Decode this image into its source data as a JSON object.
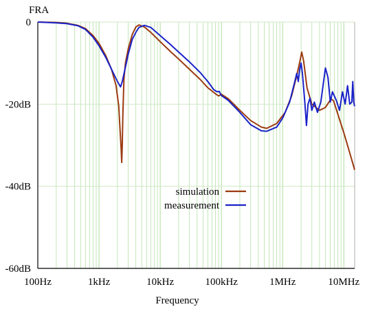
{
  "chart_data": {
    "type": "line",
    "title": "FRA",
    "xlabel": "Frequency",
    "ylabel": "",
    "x_scale": "log",
    "xlim": [
      100,
      15000000
    ],
    "ylim": [
      -60,
      0
    ],
    "x_ticks": [
      {
        "value": 100,
        "label": "100Hz"
      },
      {
        "value": 1000,
        "label": "1kHz"
      },
      {
        "value": 10000,
        "label": "10kHz"
      },
      {
        "value": 100000,
        "label": "100kHz"
      },
      {
        "value": 1000000,
        "label": "1MHz"
      },
      {
        "value": 10000000,
        "label": "10MHz"
      }
    ],
    "y_ticks": [
      {
        "value": 0,
        "label": "0"
      },
      {
        "value": -20,
        "label": "-20dB"
      },
      {
        "value": -40,
        "label": "-40dB"
      },
      {
        "value": -60,
        "label": "-60dB"
      }
    ],
    "grid": true,
    "grid_color_x": "#b5e0a8",
    "grid_color_y": "#cfe9c4",
    "legend_placement": "center",
    "series": [
      {
        "name": "simulation",
        "color": "#9b3a10",
        "points": [
          [
            100,
            0
          ],
          [
            200,
            -0.1
          ],
          [
            300,
            -0.3
          ],
          [
            450,
            -0.8
          ],
          [
            600,
            -1.6
          ],
          [
            800,
            -3.3
          ],
          [
            1000,
            -5.2
          ],
          [
            1300,
            -8.3
          ],
          [
            1600,
            -11.5
          ],
          [
            1900,
            -15.5
          ],
          [
            2100,
            -20.5
          ],
          [
            2200,
            -26
          ],
          [
            2300,
            -31
          ],
          [
            2350,
            -34.2
          ],
          [
            2400,
            -30
          ],
          [
            2450,
            -23
          ],
          [
            2550,
            -14
          ],
          [
            2700,
            -10
          ],
          [
            3000,
            -6.5
          ],
          [
            3500,
            -3
          ],
          [
            4000,
            -1.2
          ],
          [
            4500,
            -0.7
          ],
          [
            5500,
            -1.2
          ],
          [
            7000,
            -2.5
          ],
          [
            10000,
            -4.8
          ],
          [
            15000,
            -7.3
          ],
          [
            20000,
            -9.0
          ],
          [
            30000,
            -11.5
          ],
          [
            45000,
            -14
          ],
          [
            60000,
            -16
          ],
          [
            80000,
            -17.5
          ],
          [
            90000,
            -18
          ],
          [
            100000,
            -17.6
          ],
          [
            130000,
            -18.7
          ],
          [
            200000,
            -21.5
          ],
          [
            300000,
            -24
          ],
          [
            450000,
            -25.6
          ],
          [
            550000,
            -25.9
          ],
          [
            800000,
            -24.7
          ],
          [
            1100000,
            -22
          ],
          [
            1400000,
            -18
          ],
          [
            1700000,
            -13
          ],
          [
            1950000,
            -9
          ],
          [
            2050000,
            -7.3
          ],
          [
            2200000,
            -9.5
          ],
          [
            2500000,
            -16
          ],
          [
            3000000,
            -20
          ],
          [
            4000000,
            -21.5
          ],
          [
            5000000,
            -20.8
          ],
          [
            6200000,
            -18.7
          ],
          [
            6800000,
            -19.2
          ],
          [
            8000000,
            -22.5
          ],
          [
            10000000,
            -27
          ],
          [
            12000000,
            -31
          ],
          [
            15000000,
            -36
          ]
        ]
      },
      {
        "name": "measurement",
        "color": "#1a22c8",
        "points": [
          [
            100,
            0
          ],
          [
            200,
            -0.2
          ],
          [
            300,
            -0.4
          ],
          [
            450,
            -0.9
          ],
          [
            600,
            -1.8
          ],
          [
            800,
            -3.7
          ],
          [
            1000,
            -5.8
          ],
          [
            1300,
            -8.7
          ],
          [
            1600,
            -11.5
          ],
          [
            2000,
            -14.5
          ],
          [
            2250,
            -15.8
          ],
          [
            2400,
            -14.5
          ],
          [
            2700,
            -11
          ],
          [
            3000,
            -7.8
          ],
          [
            3500,
            -4.2
          ],
          [
            4000,
            -2.5
          ],
          [
            4500,
            -1.3
          ],
          [
            5500,
            -0.8
          ],
          [
            7000,
            -1.3
          ],
          [
            10000,
            -3.3
          ],
          [
            15000,
            -5.6
          ],
          [
            20000,
            -7.3
          ],
          [
            30000,
            -9.7
          ],
          [
            45000,
            -12.3
          ],
          [
            60000,
            -14.5
          ],
          [
            75000,
            -16.5
          ],
          [
            85000,
            -17
          ],
          [
            92000,
            -16.9
          ],
          [
            100000,
            -17.9
          ],
          [
            130000,
            -19.1
          ],
          [
            200000,
            -22
          ],
          [
            300000,
            -25
          ],
          [
            450000,
            -26.5
          ],
          [
            550000,
            -26.6
          ],
          [
            800000,
            -25.6
          ],
          [
            1000000,
            -23.4
          ],
          [
            1300000,
            -19.5
          ],
          [
            1550000,
            -15
          ],
          [
            1700000,
            -12.5
          ],
          [
            1800000,
            -14.5
          ],
          [
            1900000,
            -11.5
          ],
          [
            2000000,
            -10
          ],
          [
            2100000,
            -12.5
          ],
          [
            2300000,
            -19.5
          ],
          [
            2450000,
            -25.2
          ],
          [
            2600000,
            -20
          ],
          [
            2800000,
            -18.5
          ],
          [
            3000000,
            -21.5
          ],
          [
            3300000,
            -19.5
          ],
          [
            3700000,
            -22
          ],
          [
            4200000,
            -19.5
          ],
          [
            5000000,
            -11.2
          ],
          [
            5500000,
            -13.5
          ],
          [
            6000000,
            -19.5
          ],
          [
            6500000,
            -17
          ],
          [
            7500000,
            -19
          ],
          [
            8500000,
            -21.5
          ],
          [
            9500000,
            -17
          ],
          [
            10500000,
            -20
          ],
          [
            11500000,
            -15.5
          ],
          [
            12500000,
            -20
          ],
          [
            13500000,
            -19.5
          ],
          [
            14000000,
            -14.5
          ],
          [
            14500000,
            -19.5
          ],
          [
            15000000,
            -20.5
          ]
        ]
      }
    ]
  }
}
